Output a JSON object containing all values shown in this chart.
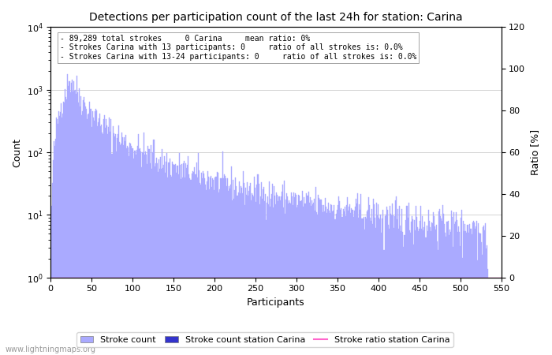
{
  "title": "Detections per participation count of the last 24h for station: Carina",
  "xlabel": "Participants",
  "ylabel_left": "Count",
  "ylabel_right": "Ratio [%]",
  "annotation_lines": [
    "89,289 total strokes     0 Carina     mean ratio: 0%",
    "Strokes Carina with 13 participants: 0     ratio of all strokes is: 0.0%",
    "Strokes Carina with 13-24 participants: 0     ratio of all strokes is: 0.0%"
  ],
  "bar_color": "#aaaaff",
  "station_bar_color": "#3333cc",
  "ratio_line_color": "#ff66cc",
  "xlim": [
    0,
    550
  ],
  "ylim_right": [
    0,
    120
  ],
  "yticks_right": [
    0,
    20,
    40,
    60,
    80,
    100,
    120
  ],
  "xticks": [
    0,
    50,
    100,
    150,
    200,
    250,
    300,
    350,
    400,
    450,
    500,
    550
  ],
  "watermark": "www.lightningmaps.org",
  "legend_stroke_count": "Stroke count",
  "legend_station": "Stroke count station Carina",
  "legend_ratio": "Stroke ratio station Carina"
}
